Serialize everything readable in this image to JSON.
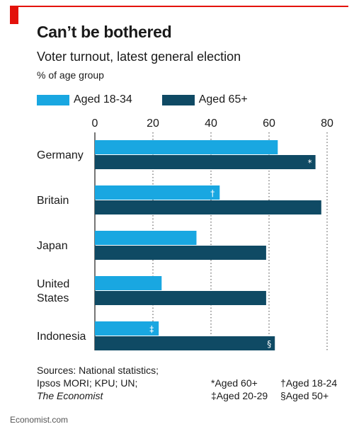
{
  "title": "Can’t be bothered",
  "subtitle": "Voter turnout, latest general election",
  "unit": "% of age group",
  "colors": {
    "young": "#19a7e1",
    "old": "#0f4a64",
    "accent": "#e3120b"
  },
  "chart_data": {
    "type": "bar",
    "orientation": "horizontal",
    "categories": [
      "Germany",
      "Britain",
      "Japan",
      "United States",
      "Indonesia"
    ],
    "category_lines": [
      [
        "Germany"
      ],
      [
        "Britain"
      ],
      [
        "Japan"
      ],
      [
        "United",
        "States"
      ],
      [
        "Indonesia"
      ]
    ],
    "series": [
      {
        "name": "Aged 18-34",
        "values": [
          63,
          43,
          35,
          23,
          22
        ],
        "marks": [
          "",
          "†",
          "",
          "",
          "‡"
        ]
      },
      {
        "name": "Aged 65+",
        "values": [
          76,
          78,
          59,
          59,
          62
        ],
        "marks": [
          "*",
          "",
          "",
          "",
          "§"
        ]
      }
    ],
    "xlim": [
      0,
      80
    ],
    "xticks": [
      0,
      20,
      40,
      60,
      80
    ],
    "grid": "dotted vertical",
    "legend_position": "top-left"
  },
  "sources": {
    "line1": "Sources: National statistics;",
    "line2": "Ipsos MORI; KPU; UN;",
    "line3": "The Economist"
  },
  "notes": {
    "n1": "*Aged 60+",
    "n2": "†Aged 18-24",
    "n3": "‡Aged 20-29",
    "n4": "§Aged 50+"
  },
  "footer": "Economist.com"
}
